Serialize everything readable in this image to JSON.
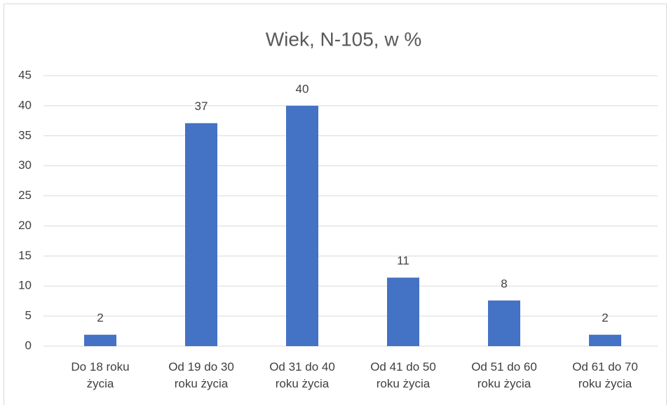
{
  "chart_data": {
    "type": "bar",
    "title": "Wiek, N-105, w %",
    "categories": [
      "Do 18 roku życia",
      "Od 19 do 30 roku życia",
      "Od 31 do 40 roku życia",
      "Od 41 do 50 roku życia",
      "Od 51 do 60 roku życia",
      "Od 61 do 70 roku życia"
    ],
    "values": [
      1.9,
      37.1,
      40,
      11.4,
      7.6,
      1.9
    ],
    "value_labels": [
      "2",
      "37",
      "40",
      "11",
      "8",
      "2"
    ],
    "color": "#4472c4",
    "ylim": [
      0,
      45
    ],
    "yticks": [
      0,
      5,
      10,
      15,
      20,
      25,
      30,
      35,
      40,
      45
    ],
    "grid": true
  }
}
